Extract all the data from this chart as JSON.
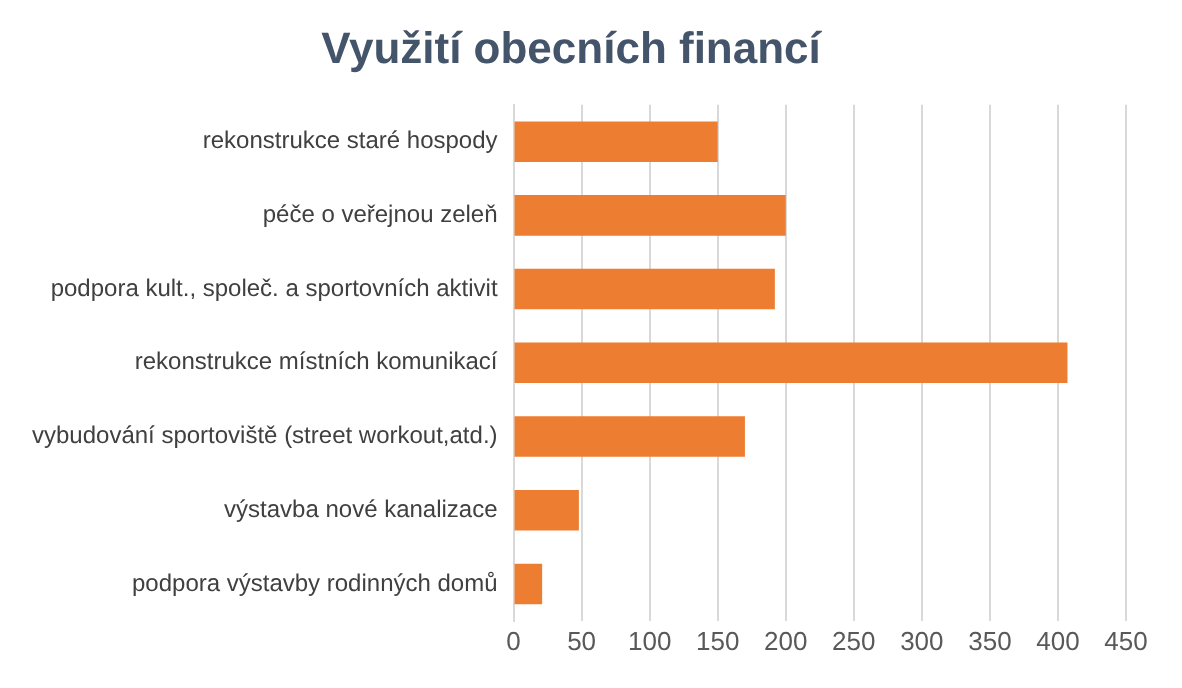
{
  "chart_data": {
    "type": "bar",
    "orientation": "horizontal",
    "title": "Využití obecních financí",
    "categories": [
      "rekonstrukce staré hospody",
      "péče o veřejnou zeleň",
      "podpora kult., společ. a sportovních aktivit",
      "rekonstrukce místních komunikací",
      "vybudování sportoviště (street workout,atd.)",
      "výstavba nové kanalizace",
      "podpora výstavby rodinných domů"
    ],
    "values": [
      150,
      200,
      192,
      407,
      170,
      48,
      21
    ],
    "color": "#ed7d31",
    "xlim": [
      0,
      450
    ],
    "xticks": [
      0,
      50,
      100,
      150,
      200,
      250,
      300,
      350,
      400,
      450
    ],
    "grid": "x",
    "legend": false
  }
}
